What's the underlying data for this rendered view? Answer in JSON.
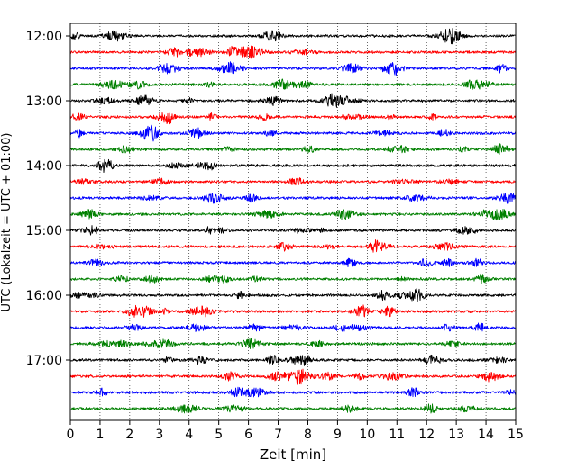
{
  "chart_data": {
    "type": "line",
    "xlabel": "Zeit  [min]",
    "ylabel": "UTC (Lokalzeit = UTC + 01:00)",
    "xlim": [
      0,
      15
    ],
    "x_ticks": [
      "0",
      "1",
      "2",
      "3",
      "4",
      "5",
      "6",
      "7",
      "8",
      "9",
      "10",
      "11",
      "12",
      "13",
      "14",
      "15"
    ],
    "y_ticks": [
      "12:00",
      "13:00",
      "14:00",
      "15:00",
      "16:00",
      "17:00"
    ],
    "grid": "vertical-dotted",
    "trace_interval_minutes": 15,
    "trace_count": 24,
    "trace_colors": [
      "#000000",
      "#ff0000",
      "#0000ff",
      "#008000"
    ],
    "series": [
      {
        "start": "12:00"
      },
      {
        "start": "12:15"
      },
      {
        "start": "12:30"
      },
      {
        "start": "12:45"
      },
      {
        "start": "13:00"
      },
      {
        "start": "13:15"
      },
      {
        "start": "13:30"
      },
      {
        "start": "13:45"
      },
      {
        "start": "14:00"
      },
      {
        "start": "14:15"
      },
      {
        "start": "14:30"
      },
      {
        "start": "14:45"
      },
      {
        "start": "15:00"
      },
      {
        "start": "15:15"
      },
      {
        "start": "15:30"
      },
      {
        "start": "15:45"
      },
      {
        "start": "16:00"
      },
      {
        "start": "16:15"
      },
      {
        "start": "16:30"
      },
      {
        "start": "16:45"
      },
      {
        "start": "17:00"
      },
      {
        "start": "17:15"
      },
      {
        "start": "17:30"
      },
      {
        "start": "17:45"
      }
    ]
  }
}
